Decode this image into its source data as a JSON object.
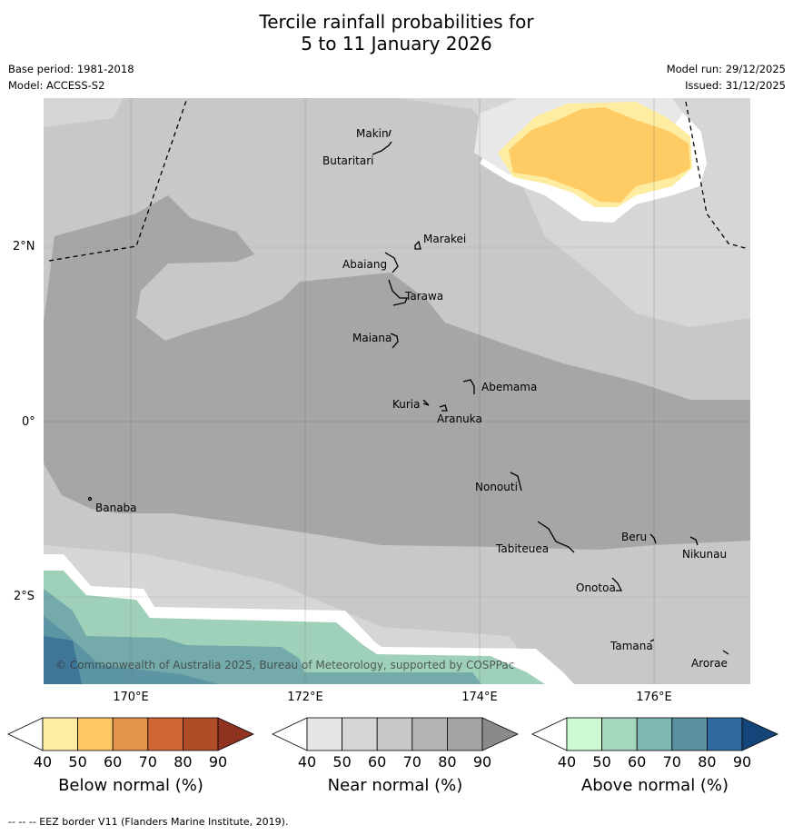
{
  "title": {
    "line1": "Tercile rainfall probabilities for",
    "line2": "5 to 11 January 2026"
  },
  "meta": {
    "base_period": "Base period: 1981-2018",
    "model": "Model: ACCESS-S2",
    "model_run": "Model run: 29/12/2025",
    "issued": "Issued: 31/12/2025"
  },
  "map": {
    "lat_labels": [
      "2°N",
      "0°",
      "2°S"
    ],
    "lon_labels": [
      "170°E",
      "172°E",
      "174°E",
      "176°E"
    ],
    "places": [
      "Makin",
      "Butaritari",
      "Marakei",
      "Abaiang",
      "Tarawa",
      "Maiana",
      "Abemama",
      "Kuria",
      "Aranuka",
      "Nonouti",
      "Banaba",
      "Beru",
      "Tabiteuea",
      "Nikunau",
      "Onotoa",
      "Tamana",
      "Arorae"
    ],
    "copyright": "© Commonwealth of Australia 2025, Bureau of Meteorology, supported by COSPPac"
  },
  "legend": {
    "ticks": [
      "40",
      "50",
      "60",
      "70",
      "80",
      "90"
    ],
    "below": {
      "label": "Below normal (%)",
      "colors": [
        "#ffeea1",
        "#fec965",
        "#e3944a",
        "#ce6535",
        "#b04c27",
        "#8f3320"
      ]
    },
    "near": {
      "label": "Near normal (%)",
      "colors": [
        "#e6e6e6",
        "#d6d6d6",
        "#c8c8c8",
        "#b4b4b4",
        "#a4a4a4",
        "#8a8a8a"
      ]
    },
    "above": {
      "label": "Above normal (%)",
      "colors": [
        "#ccf9cf",
        "#a4d7be",
        "#7fb7b2",
        "#5b91a0",
        "#2f6a9e",
        "#14457a"
      ]
    }
  },
  "footer": "--  --  -- EEZ border V11 (Flanders Marine Institute, 2019)."
}
